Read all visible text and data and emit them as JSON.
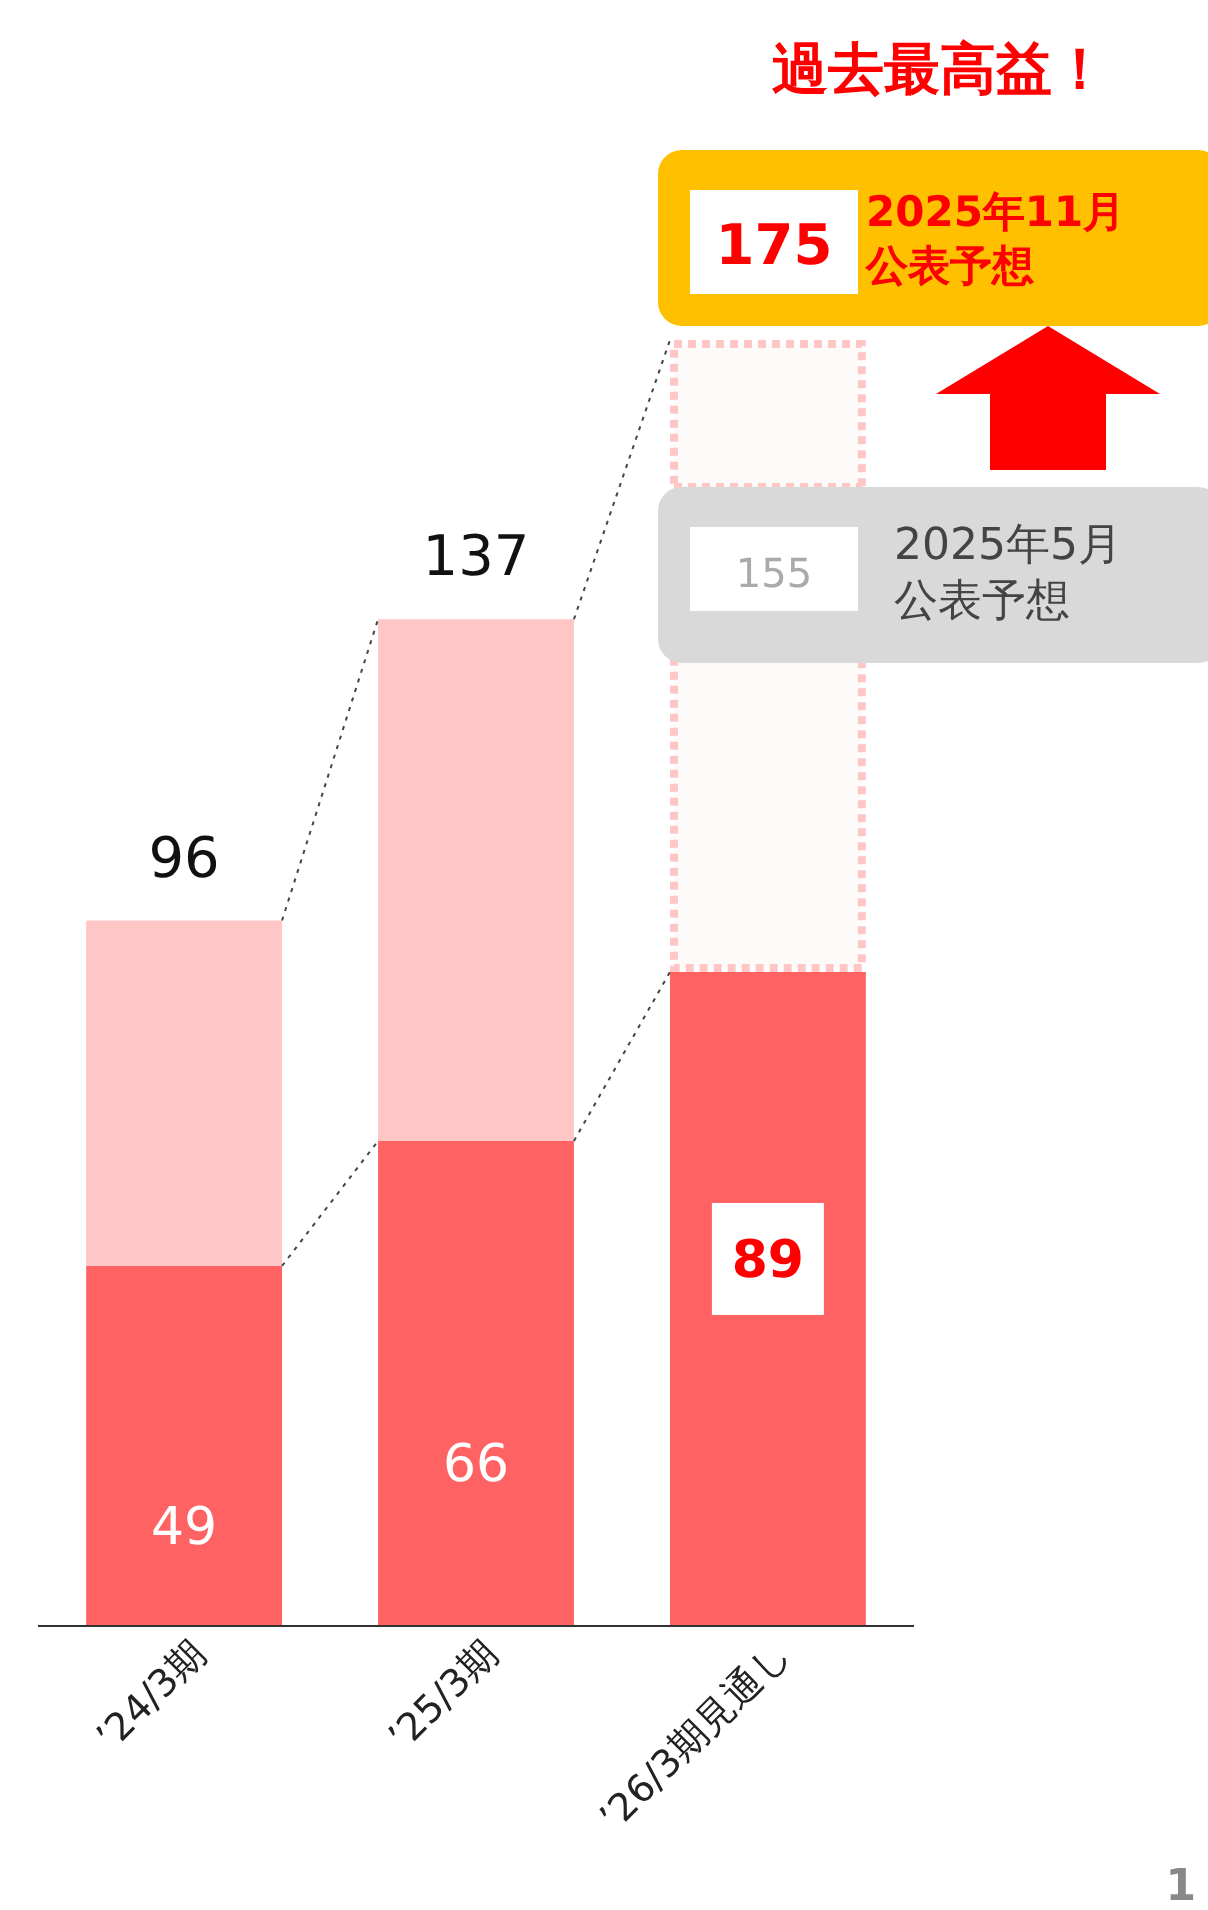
{
  "chart_data": {
    "type": "bar",
    "title": "過去最高益！",
    "stacked": true,
    "categories": [
      "’24/3期",
      "’25/3期",
      "’26/3期見通し"
    ],
    "series": [
      {
        "color": "#ff6262",
        "values": [
          49,
          66,
          89
        ],
        "value_labels": [
          "49",
          "66",
          "89"
        ]
      },
      {
        "color": "#ffc6c6",
        "values": [
          47,
          71,
          null
        ]
      },
      {
        "color": "#fdfbf9",
        "values": [
          null,
          null,
          86
        ],
        "line_style": "dotted"
      }
    ],
    "totals": [
      "96",
      "137",
      null
    ],
    "ylim": [
      0,
      175
    ],
    "tick_labels": "x",
    "ref_lines": [
      {
        "axis": "y",
        "value": 155,
        "color": "#ffc6c6",
        "line_style": "dotted"
      }
    ],
    "annotations": [
      {
        "text": "175",
        "x": "’26/3期見通し",
        "y": 175
      },
      "2025年11月",
      "公表予想",
      {
        "text": "155",
        "x": "’26/3期見通し",
        "y": 155
      },
      "2025年5月",
      "公表予想",
      "1"
    ]
  }
}
